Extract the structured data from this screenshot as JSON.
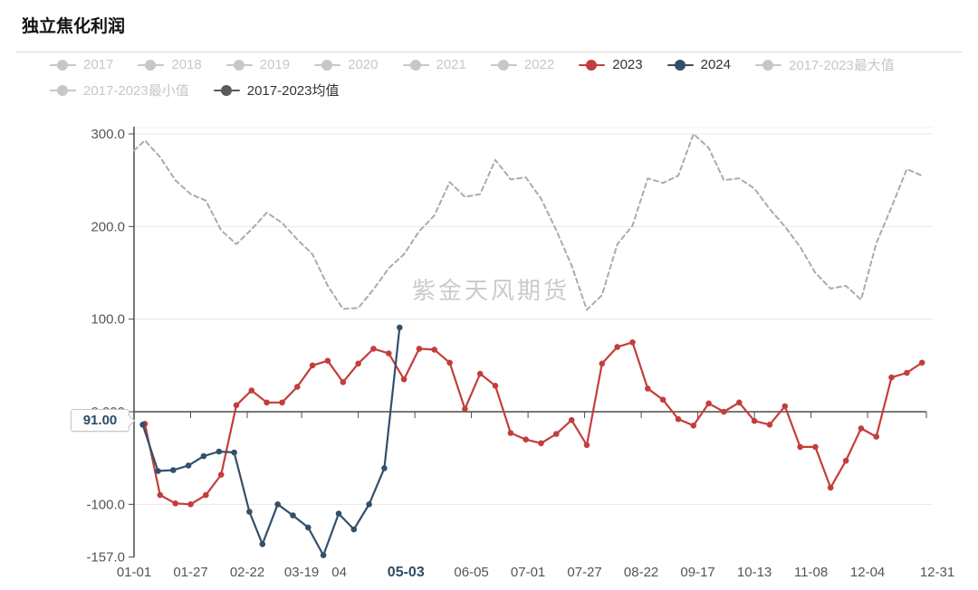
{
  "title": "独立焦化利润",
  "watermark": "紫金天风期货",
  "callout": {
    "value": "91.00"
  },
  "colors": {
    "red": "#c33e3b",
    "navy": "#33506a",
    "mean_line": "#ababab",
    "mean_legend_marker": "#5a5a5a",
    "legend_inactive": "#c7c7c7",
    "legend_active_text": "#333333",
    "grid": "#e8e8e8",
    "grid_faint": "#f2f2f2",
    "axis": "#4a4a4a",
    "tick_label": "#555555",
    "emphasis_label": "#2e4d68",
    "watermark": "#cbcbcb"
  },
  "legend": {
    "rows": [
      [
        {
          "label": "2017",
          "state": "inactive"
        },
        {
          "label": "2018",
          "state": "inactive"
        },
        {
          "label": "2019",
          "state": "inactive"
        },
        {
          "label": "2020",
          "state": "inactive"
        },
        {
          "label": "2021",
          "state": "inactive"
        },
        {
          "label": "2022",
          "state": "inactive"
        },
        {
          "label": "2023",
          "state": "active",
          "color": "#c33e3b"
        },
        {
          "label": "2024",
          "state": "active",
          "color": "#33506a"
        },
        {
          "label": "2017-2023最大值",
          "state": "inactive"
        }
      ],
      [
        {
          "label": "2017-2023最小值",
          "state": "inactive"
        },
        {
          "label": "2017-2023均值",
          "state": "active",
          "color": "#5a5a5a"
        }
      ]
    ]
  },
  "chart_data": {
    "type": "line",
    "title": "独立焦化利润",
    "xlabel": "",
    "ylabel": "",
    "ylim": [
      -157,
      300
    ],
    "xlim_dates": [
      "01-01",
      "12-31"
    ],
    "grid": true,
    "legend_position": "top",
    "yticks": [
      {
        "label": "300.0",
        "value": 300
      },
      {
        "label": "200.0",
        "value": 200
      },
      {
        "label": "100.0",
        "value": 100
      },
      {
        "label": "0.000",
        "value": 0
      },
      {
        "label": "-100.0",
        "value": -100
      },
      {
        "label": "-157.0",
        "value": -157
      }
    ],
    "xticks": [
      {
        "label": "01-01",
        "date": "01-01",
        "dx": 0
      },
      {
        "label": "01-27",
        "date": "01-27",
        "dx": 0
      },
      {
        "label": "02-22",
        "date": "02-22",
        "dx": 0
      },
      {
        "label": "03-19",
        "date": "03-19",
        "dx": 0
      },
      {
        "label": "04",
        "date": "04-14",
        "dx": -21
      },
      {
        "label": "05-03",
        "date": "05-03",
        "dx": 7,
        "emphasis": true
      },
      {
        "label": "06-05",
        "date": "06-05",
        "dx": 0
      },
      {
        "label": "07-01",
        "date": "07-01",
        "dx": 0
      },
      {
        "label": "07-27",
        "date": "07-27",
        "dx": 0
      },
      {
        "label": "08-22",
        "date": "08-22",
        "dx": 0
      },
      {
        "label": "09-17",
        "date": "09-17",
        "dx": 0
      },
      {
        "label": "10-13",
        "date": "10-13",
        "dx": 0
      },
      {
        "label": "11-08",
        "date": "11-08",
        "dx": 0
      },
      {
        "label": "12-04",
        "date": "12-04",
        "dx": 0
      },
      {
        "label": "12-31",
        "date": "12-31",
        "dx": 12
      }
    ],
    "axis_tick_dates": [
      "01-27",
      "02-22",
      "03-19",
      "04-14",
      "05-10",
      "06-05",
      "07-01",
      "07-27",
      "08-22",
      "09-17",
      "10-13",
      "11-08",
      "12-04",
      "12-31"
    ],
    "series": [
      {
        "name": "2017-2023均值",
        "style": "dashed",
        "color": "#ababab",
        "markers": false,
        "points": [
          [
            "01-01",
            282
          ],
          [
            "01-06",
            293
          ],
          [
            "01-13",
            275
          ],
          [
            "01-20",
            250
          ],
          [
            "01-27",
            235
          ],
          [
            "02-03",
            228
          ],
          [
            "02-10",
            196
          ],
          [
            "02-17",
            181
          ],
          [
            "02-24",
            197
          ],
          [
            "03-03",
            215
          ],
          [
            "03-10",
            204
          ],
          [
            "03-17",
            186
          ],
          [
            "03-24",
            170
          ],
          [
            "03-31",
            136
          ],
          [
            "04-07",
            111
          ],
          [
            "04-14",
            112
          ],
          [
            "04-21",
            132
          ],
          [
            "04-28",
            155
          ],
          [
            "05-05",
            170
          ],
          [
            "05-12",
            195
          ],
          [
            "05-19",
            212
          ],
          [
            "05-26",
            248
          ],
          [
            "06-02",
            232
          ],
          [
            "06-09",
            235
          ],
          [
            "06-16",
            272
          ],
          [
            "06-23",
            251
          ],
          [
            "06-30",
            253
          ],
          [
            "07-07",
            230
          ],
          [
            "07-14",
            196
          ],
          [
            "07-21",
            158
          ],
          [
            "07-28",
            110
          ],
          [
            "08-04",
            126
          ],
          [
            "08-11",
            181
          ],
          [
            "08-18",
            201
          ],
          [
            "08-25",
            252
          ],
          [
            "09-01",
            247
          ],
          [
            "09-08",
            255
          ],
          [
            "09-15",
            300
          ],
          [
            "09-22",
            285
          ],
          [
            "09-29",
            250
          ],
          [
            "10-06",
            252
          ],
          [
            "10-13",
            241
          ],
          [
            "10-20",
            219
          ],
          [
            "10-27",
            200
          ],
          [
            "11-03",
            178
          ],
          [
            "11-10",
            150
          ],
          [
            "11-17",
            133
          ],
          [
            "11-24",
            136
          ],
          [
            "12-01",
            121
          ],
          [
            "12-08",
            182
          ],
          [
            "12-15",
            221
          ],
          [
            "12-22",
            262
          ],
          [
            "12-29",
            255
          ]
        ]
      },
      {
        "name": "2023",
        "style": "solid",
        "color": "#c33e3b",
        "markers": true,
        "points": [
          [
            "01-06",
            -13
          ],
          [
            "01-13",
            -90
          ],
          [
            "01-20",
            -99
          ],
          [
            "01-27",
            -100
          ],
          [
            "02-03",
            -90
          ],
          [
            "02-10",
            -68
          ],
          [
            "02-17",
            7
          ],
          [
            "02-24",
            23
          ],
          [
            "03-03",
            10
          ],
          [
            "03-10",
            10
          ],
          [
            "03-17",
            27
          ],
          [
            "03-24",
            50
          ],
          [
            "03-31",
            55
          ],
          [
            "04-07",
            32
          ],
          [
            "04-14",
            52
          ],
          [
            "04-21",
            68
          ],
          [
            "04-28",
            63
          ],
          [
            "05-05",
            35
          ],
          [
            "05-12",
            68
          ],
          [
            "05-19",
            67
          ],
          [
            "05-26",
            53
          ],
          [
            "06-02",
            3
          ],
          [
            "06-09",
            41
          ],
          [
            "06-16",
            28
          ],
          [
            "06-23",
            -23
          ],
          [
            "06-30",
            -30
          ],
          [
            "07-07",
            -34
          ],
          [
            "07-14",
            -24
          ],
          [
            "07-21",
            -9
          ],
          [
            "07-28",
            -36
          ],
          [
            "08-04",
            52
          ],
          [
            "08-11",
            70
          ],
          [
            "08-18",
            75
          ],
          [
            "08-25",
            25
          ],
          [
            "09-01",
            13
          ],
          [
            "09-08",
            -8
          ],
          [
            "09-15",
            -15
          ],
          [
            "09-22",
            9
          ],
          [
            "09-29",
            0
          ],
          [
            "10-06",
            10
          ],
          [
            "10-13",
            -10
          ],
          [
            "10-20",
            -14
          ],
          [
            "10-27",
            6
          ],
          [
            "11-03",
            -38
          ],
          [
            "11-10",
            -38
          ],
          [
            "11-17",
            -82
          ],
          [
            "11-24",
            -53
          ],
          [
            "12-01",
            -18
          ],
          [
            "12-08",
            -27
          ],
          [
            "12-15",
            37
          ],
          [
            "12-22",
            42
          ],
          [
            "12-29",
            53
          ]
        ]
      },
      {
        "name": "2024",
        "style": "solid",
        "color": "#33506a",
        "markers": true,
        "points": [
          [
            "01-05",
            -14
          ],
          [
            "01-12",
            -64
          ],
          [
            "01-19",
            -63
          ],
          [
            "01-26",
            -58
          ],
          [
            "02-02",
            -48
          ],
          [
            "02-09",
            -43
          ],
          [
            "02-16",
            -44
          ],
          [
            "02-23",
            -108
          ],
          [
            "03-01",
            -143
          ],
          [
            "03-08",
            -100
          ],
          [
            "03-15",
            -112
          ],
          [
            "03-22",
            -125
          ],
          [
            "03-29",
            -155
          ],
          [
            "04-05",
            -110
          ],
          [
            "04-12",
            -127
          ],
          [
            "04-19",
            -100
          ],
          [
            "04-26",
            -61
          ],
          [
            "05-03",
            91
          ]
        ]
      }
    ]
  }
}
